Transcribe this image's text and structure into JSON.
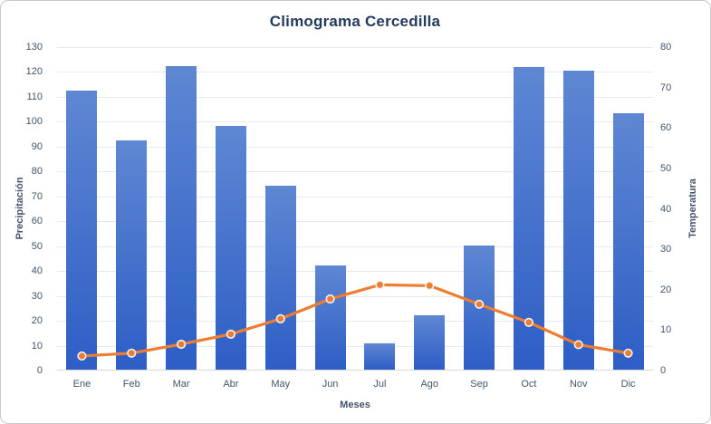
{
  "chart_data": {
    "type": "bar",
    "subtype": "combo-bar-line-dual-axis",
    "title": "Climograma Cercedilla",
    "xlabel": "Meses",
    "ylabel_left": "Precipitación",
    "ylabel_right": "Temperatura",
    "categories": [
      "Ene",
      "Feb",
      "Mar",
      "Abr",
      "May",
      "Jun",
      "Jul",
      "Ago",
      "Sep",
      "Oct",
      "Nov",
      "Dic"
    ],
    "series": [
      {
        "name": "Precipitación",
        "type": "bar",
        "axis": "left",
        "values": [
          112,
          92,
          122,
          98,
          74,
          42,
          10.5,
          22,
          50,
          121.5,
          120,
          103
        ]
      },
      {
        "name": "Temperatura",
        "type": "line",
        "axis": "right",
        "values": [
          3.6,
          4.3,
          6.5,
          9.0,
          12.8,
          17.7,
          21.2,
          21.0,
          16.4,
          11.9,
          6.4,
          4.3
        ]
      }
    ],
    "ylim_left": [
      0,
      130
    ],
    "ylim_right": [
      0,
      80
    ],
    "yticks_left": [
      0,
      10,
      20,
      30,
      40,
      50,
      60,
      70,
      80,
      90,
      100,
      110,
      120,
      130
    ],
    "yticks_right": [
      0,
      10,
      20,
      30,
      40,
      50,
      60,
      70,
      80
    ],
    "grid": true,
    "legend": "none",
    "colors": {
      "bar_gradient_top": "#5E87D3",
      "bar_gradient_bottom": "#2E5EC6",
      "line": "#ED7D31",
      "marker_fill": "#ED7D31",
      "marker_ring": "#F2F2F2",
      "gridline": "#E5E9F0",
      "axis_line": "#D9D9D9",
      "tick_text": "#44546A",
      "title_text": "#233B5C"
    }
  }
}
